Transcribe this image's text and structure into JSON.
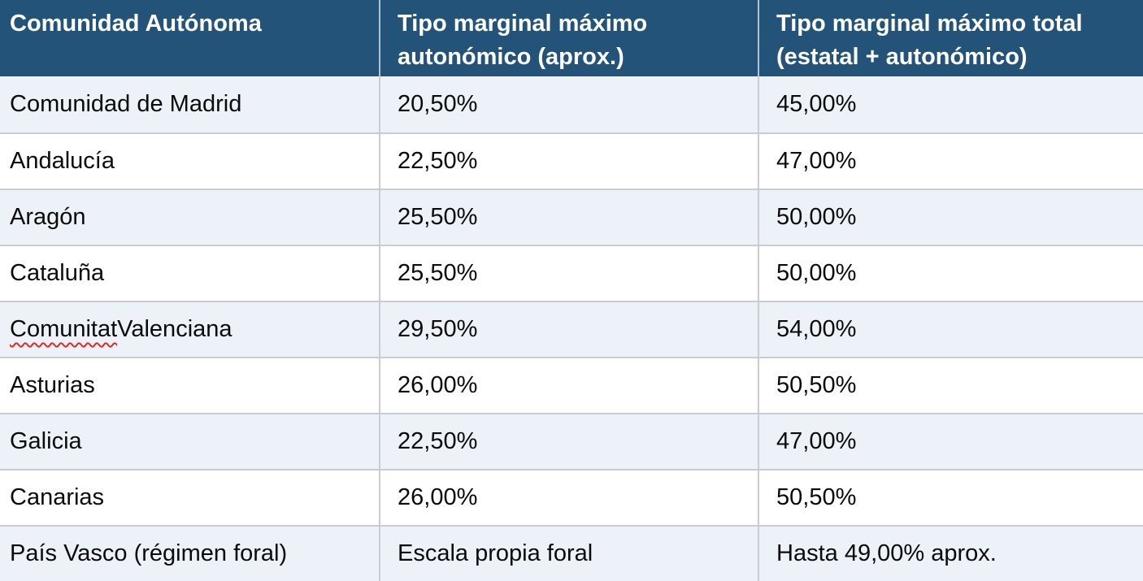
{
  "table": {
    "columns": [
      {
        "label": "Comunidad Autónoma"
      },
      {
        "label": "Tipo marginal máximo autonómico (aprox.)"
      },
      {
        "label": "Tipo marginal máximo total (estatal + autonómico)"
      }
    ],
    "rows": [
      {
        "name": "Comunidad de Madrid",
        "autonomico": "20,50%",
        "total": "45,00%"
      },
      {
        "name": "Andalucía",
        "autonomico": "22,50%",
        "total": "47,00%"
      },
      {
        "name": "Aragón",
        "autonomico": "25,50%",
        "total": "50,00%"
      },
      {
        "name": "Cataluña",
        "autonomico": "25,50%",
        "total": "50,00%"
      },
      {
        "name": "Comunitat Valenciana",
        "name_misspelled": "Comunitat",
        "name_rest": " Valenciana",
        "autonomico": "29,50%",
        "total": "54,00%"
      },
      {
        "name": "Asturias",
        "autonomico": "26,00%",
        "total": "50,50%"
      },
      {
        "name": "Galicia",
        "autonomico": "22,50%",
        "total": "47,00%"
      },
      {
        "name": "Canarias",
        "autonomico": "26,00%",
        "total": "50,50%"
      },
      {
        "name": "País Vasco (régimen foral)",
        "autonomico": "Escala propia foral",
        "total": "Hasta 49,00% aprox."
      }
    ],
    "colors": {
      "header_background": "#235378",
      "header_text": "#ffffff",
      "row_alt_background": "#edf2f9",
      "row_background": "#ffffff",
      "grid_line": "#c9ccd1",
      "body_text": "#0b0b0b",
      "spellcheck_underline": "#e02b20"
    }
  }
}
